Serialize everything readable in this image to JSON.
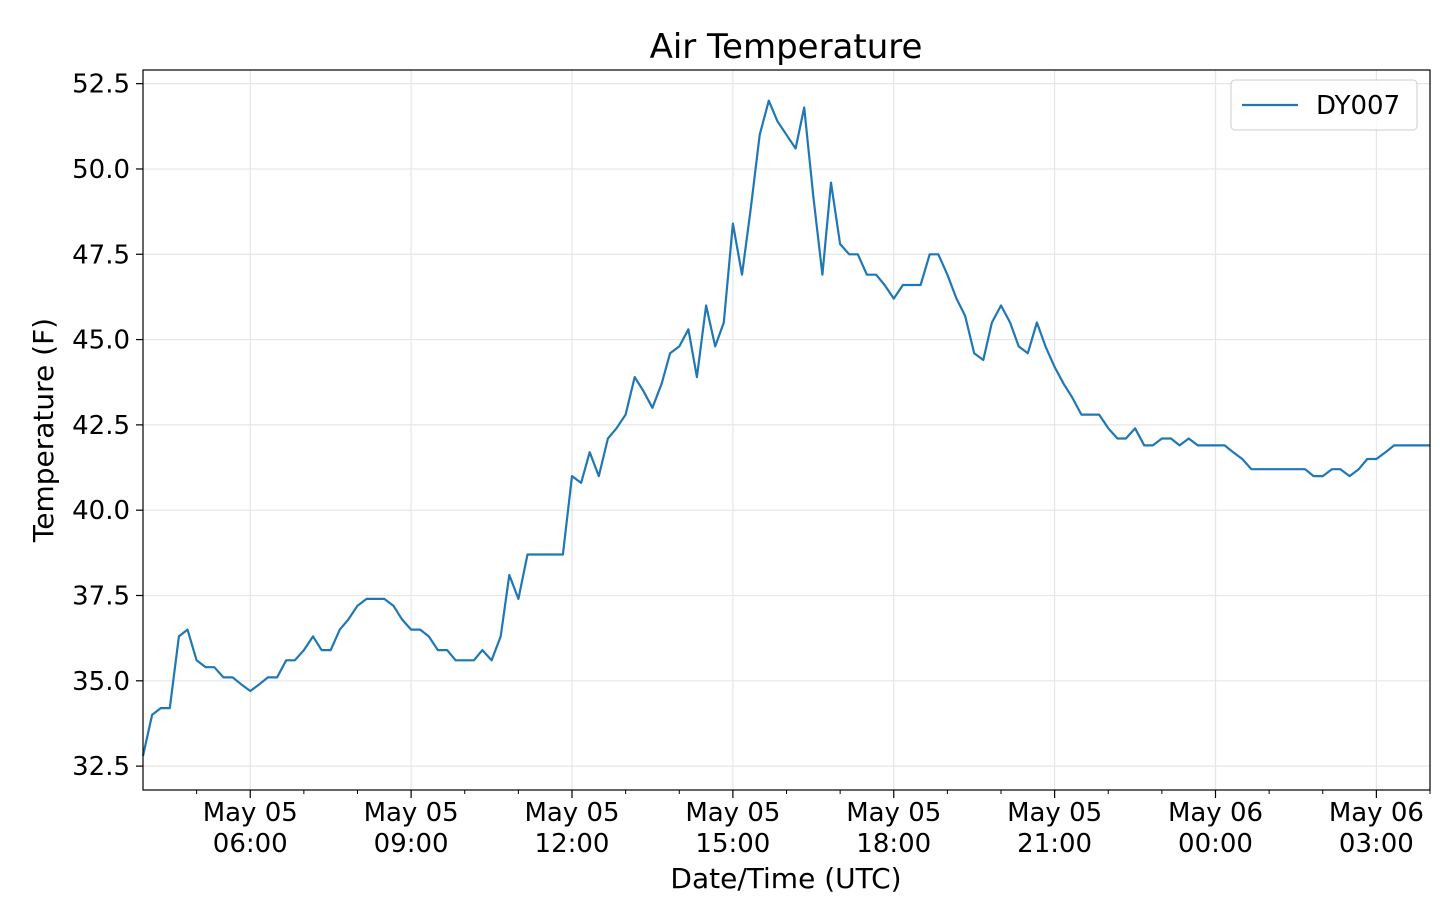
{
  "chart_data": {
    "type": "line",
    "title": "Air Temperature",
    "xlabel": "Date/Time (UTC)",
    "ylabel": "Temperature (F)",
    "ylim": [
      31.8,
      52.9
    ],
    "xlim_hours": [
      4.0,
      28.0
    ],
    "x_unit": "hours since 2024-05-05 00:00 UTC (axis shows May 05/May 06 clock times)",
    "yticks": [
      {
        "value": 32.5,
        "label": "32.5"
      },
      {
        "value": 35.0,
        "label": "35.0"
      },
      {
        "value": 37.5,
        "label": "37.5"
      },
      {
        "value": 40.0,
        "label": "40.0"
      },
      {
        "value": 42.5,
        "label": "42.5"
      },
      {
        "value": 45.0,
        "label": "45.0"
      },
      {
        "value": 47.5,
        "label": "47.5"
      },
      {
        "value": 50.0,
        "label": "50.0"
      },
      {
        "value": 52.5,
        "label": "52.5"
      }
    ],
    "xticks": [
      {
        "hour": 6,
        "line1": "May 05",
        "line2": "06:00"
      },
      {
        "hour": 9,
        "line1": "May 05",
        "line2": "09:00"
      },
      {
        "hour": 12,
        "line1": "May 05",
        "line2": "12:00"
      },
      {
        "hour": 15,
        "line1": "May 05",
        "line2": "15:00"
      },
      {
        "hour": 18,
        "line1": "May 05",
        "line2": "18:00"
      },
      {
        "hour": 21,
        "line1": "May 05",
        "line2": "21:00"
      },
      {
        "hour": 24,
        "line1": "May 06",
        "line2": "00:00"
      },
      {
        "hour": 27,
        "line1": "May 06",
        "line2": "03:00"
      }
    ],
    "minor_xtick_hours": [
      5,
      7,
      8,
      10,
      11,
      13,
      14,
      16,
      17,
      19,
      20,
      22,
      23,
      25,
      26,
      28
    ],
    "grid": true,
    "legend_position": "top-right",
    "series": [
      {
        "name": "DY007",
        "color": "#1f77b4",
        "x": [
          4.0,
          4.17,
          4.33,
          4.5,
          4.67,
          4.83,
          5.0,
          5.17,
          5.33,
          5.5,
          5.67,
          5.83,
          6.0,
          6.17,
          6.33,
          6.5,
          6.67,
          6.83,
          7.0,
          7.17,
          7.33,
          7.5,
          7.67,
          7.83,
          8.0,
          8.17,
          8.33,
          8.5,
          8.67,
          8.83,
          9.0,
          9.17,
          9.33,
          9.5,
          9.67,
          9.83,
          10.0,
          10.17,
          10.33,
          10.5,
          10.67,
          10.83,
          11.0,
          11.17,
          11.33,
          11.5,
          11.67,
          11.83,
          12.0,
          12.17,
          12.33,
          12.5,
          12.67,
          12.83,
          13.0,
          13.17,
          13.33,
          13.5,
          13.67,
          13.83,
          14.0,
          14.17,
          14.33,
          14.5,
          14.67,
          14.83,
          15.0,
          15.17,
          15.33,
          15.5,
          15.67,
          15.83,
          16.0,
          16.17,
          16.33,
          16.5,
          16.67,
          16.83,
          17.0,
          17.17,
          17.33,
          17.5,
          17.67,
          17.83,
          18.0,
          18.17,
          18.33,
          18.5,
          18.67,
          18.83,
          19.0,
          19.17,
          19.33,
          19.5,
          19.67,
          19.83,
          20.0,
          20.17,
          20.33,
          20.5,
          20.67,
          20.83,
          21.0,
          21.17,
          21.33,
          21.5,
          21.67,
          21.83,
          22.0,
          22.17,
          22.33,
          22.5,
          22.67,
          22.83,
          23.0,
          23.17,
          23.33,
          23.5,
          23.67,
          23.83,
          24.0,
          24.17,
          24.33,
          24.5,
          24.67,
          24.83,
          25.0,
          25.17,
          25.33,
          25.5,
          25.67,
          25.83,
          26.0,
          26.17,
          26.33,
          26.5,
          26.67,
          26.83,
          27.0,
          27.17,
          27.33,
          27.5,
          27.67,
          27.83,
          28.0
        ],
        "values": [
          32.8,
          34.0,
          34.2,
          34.2,
          36.3,
          36.5,
          35.6,
          35.4,
          35.4,
          35.1,
          35.1,
          34.9,
          34.7,
          34.9,
          35.1,
          35.1,
          35.6,
          35.6,
          35.9,
          36.3,
          35.9,
          35.9,
          36.5,
          36.8,
          37.2,
          37.4,
          37.4,
          37.4,
          37.2,
          36.8,
          36.5,
          36.5,
          36.3,
          35.9,
          35.9,
          35.6,
          35.6,
          35.6,
          35.9,
          35.6,
          36.3,
          38.1,
          37.4,
          38.7,
          38.7,
          38.7,
          38.7,
          38.7,
          41.0,
          40.8,
          41.7,
          41.0,
          42.1,
          42.4,
          42.8,
          43.9,
          43.5,
          43.0,
          43.7,
          44.6,
          44.8,
          45.3,
          43.9,
          46.0,
          44.8,
          45.5,
          48.4,
          46.9,
          48.8,
          51.0,
          52.0,
          51.4,
          51.0,
          50.6,
          51.8,
          49.2,
          46.9,
          49.6,
          47.8,
          47.5,
          47.5,
          46.9,
          46.9,
          46.6,
          46.2,
          46.6,
          46.6,
          46.6,
          47.5,
          47.5,
          46.9,
          46.2,
          45.7,
          44.6,
          44.4,
          45.5,
          46.0,
          45.5,
          44.8,
          44.6,
          45.5,
          44.8,
          44.2,
          43.7,
          43.3,
          42.8,
          42.8,
          42.8,
          42.4,
          42.1,
          42.1,
          42.4,
          41.9,
          41.9,
          42.1,
          42.1,
          41.9,
          42.1,
          41.9,
          41.9,
          41.9,
          41.9,
          41.7,
          41.5,
          41.2,
          41.2,
          41.2,
          41.2,
          41.2,
          41.2,
          41.2,
          41.0,
          41.0,
          41.2,
          41.2,
          41.0,
          41.2,
          41.5,
          41.5,
          41.7,
          41.9,
          41.9,
          41.9,
          41.9,
          41.9
        ]
      }
    ]
  }
}
